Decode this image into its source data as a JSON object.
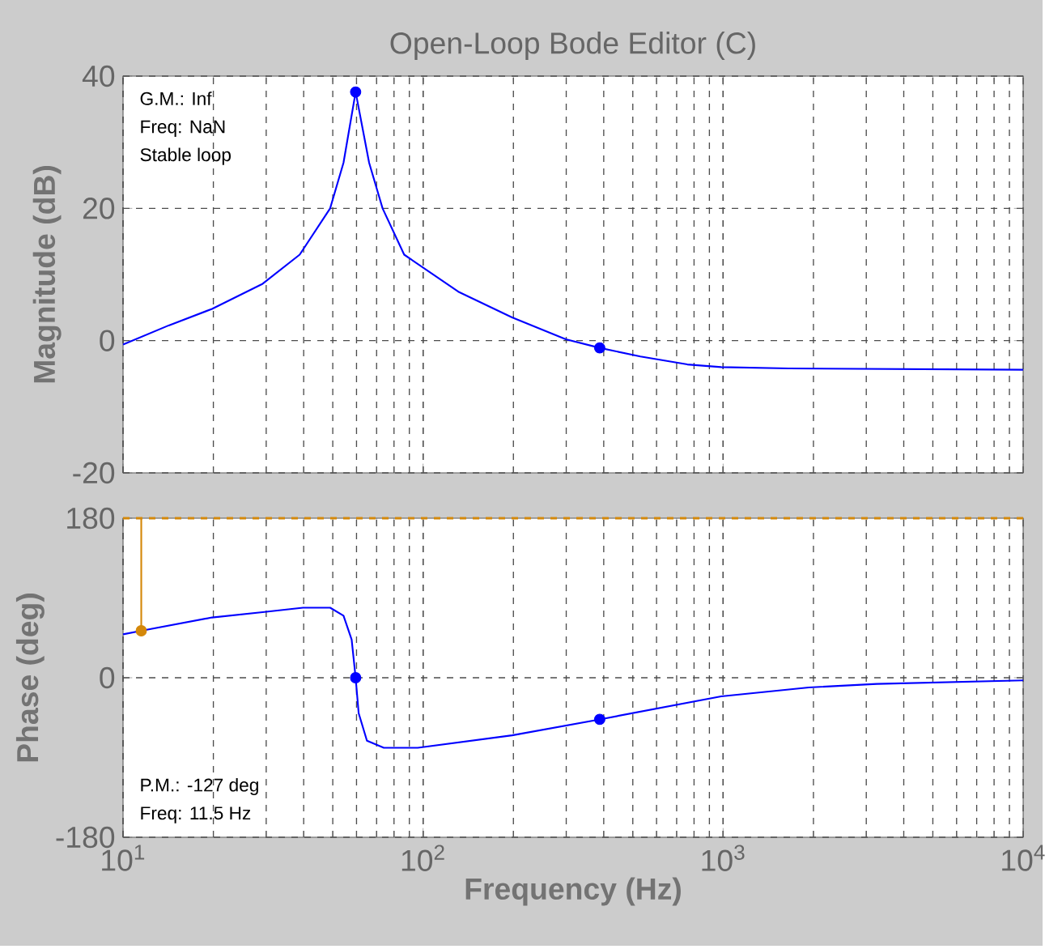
{
  "chart_data": [
    {
      "type": "line",
      "title": "Open-Loop Bode Editor (C)",
      "ylabel": "Magnitude (dB)",
      "log": "x",
      "grid": true,
      "tick_labels": "y",
      "xlim": [
        10,
        10000
      ],
      "xticks": [
        {
          "value": 10,
          "label": null
        },
        {
          "value": 100,
          "label": null
        },
        {
          "value": 1000,
          "label": null
        },
        {
          "value": 10000,
          "label": null
        }
      ],
      "ylim": [
        -20,
        40
      ],
      "yticks": [
        -20,
        0,
        20,
        40
      ],
      "annotations": [
        "G.M.: Inf",
        "Freq: NaN",
        "Stable loop"
      ],
      "series": [
        {
          "type": "line",
          "color": "#0000ff",
          "x": [
            10,
            14.2,
            19.8,
            29.2,
            38.8,
            49,
            54.3,
            59.6,
            66.1,
            73.3,
            86.5,
            131,
            198,
            299,
            388,
            530,
            760,
            985,
            1652,
            10000
          ],
          "values": [
            -0.6,
            2.3,
            4.8,
            8.6,
            13.0,
            20,
            26.9,
            37.6,
            26.9,
            20,
            13,
            7.4,
            3.5,
            0.2,
            -1.1,
            -2.4,
            -3.6,
            -4.0,
            -4.2,
            -4.4
          ]
        },
        {
          "type": "scatter",
          "color": "#0000ff",
          "marker": "circle",
          "x": [
            59.6,
            388
          ],
          "values": [
            37.6,
            -1.1
          ]
        }
      ]
    },
    {
      "type": "line",
      "ylabel": "Phase (deg)",
      "xlabel": "Frequency (Hz)",
      "log": "x",
      "grid": true,
      "xlim": [
        10,
        10000
      ],
      "xticks": [
        {
          "value": 10,
          "label": "10$^{1}$"
        },
        {
          "value": 100,
          "label": "10$^{2}$"
        },
        {
          "value": 1000,
          "label": "10$^{3}$"
        },
        {
          "value": 10000,
          "label": "10$^{4}$"
        }
      ],
      "ylim": [
        -180,
        180
      ],
      "yticks": [
        -180,
        0,
        180
      ],
      "annotations": [
        "P.M.: -127 deg",
        "Freq: 11.5 Hz"
      ],
      "ref_lines": [
        {
          "axis": "y",
          "value": 180,
          "color": "#d4880a",
          "line_style": "dashed"
        }
      ],
      "series": [
        {
          "type": "line",
          "color": "#0000ff",
          "x": [
            10,
            11.5,
            19.8,
            29.2,
            39.8,
            49,
            54.3,
            57.8,
            59.6,
            61,
            65,
            74,
            96,
            198,
            388,
            985,
            1930,
            3250,
            10000
          ],
          "values": [
            49,
            53,
            68,
            74,
            79,
            79,
            70,
            43,
            0,
            -40,
            -71,
            -79,
            -79,
            -65,
            -47,
            -21,
            -11,
            -7,
            -3
          ]
        },
        {
          "type": "line",
          "color": "#d4880a",
          "x": [
            11.5,
            11.5
          ],
          "values": [
            180,
            53
          ]
        },
        {
          "type": "scatter",
          "color": "#d4880a",
          "marker": "circle",
          "x": [
            11.5
          ],
          "values": [
            53
          ]
        },
        {
          "type": "scatter",
          "color": "#0000ff",
          "marker": "circle",
          "x": [
            59.6,
            388
          ],
          "values": [
            0,
            -47
          ]
        }
      ]
    }
  ]
}
